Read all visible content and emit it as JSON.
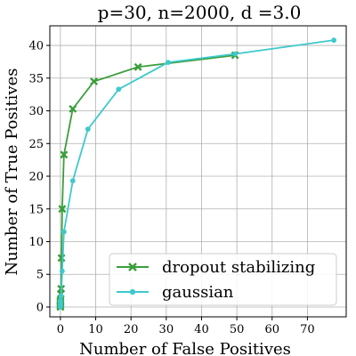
{
  "chart_data": {
    "type": "line",
    "title": "p=30, n=2000, d =3.0",
    "xlabel": "Number of False Positives",
    "ylabel": "Number of True Positives",
    "xlim": [
      -3,
      81
    ],
    "ylim": [
      -1.5,
      43
    ],
    "xticks": [
      0,
      10,
      20,
      30,
      40,
      50,
      60,
      70
    ],
    "yticks": [
      0,
      5,
      10,
      15,
      20,
      25,
      30,
      35,
      40
    ],
    "grid": true,
    "legend": "lower-right",
    "series": [
      {
        "name": "dropout stabilizing",
        "color": "#3a9e3a",
        "marker": "x",
        "x": [
          0,
          0,
          0,
          0,
          0,
          0,
          0.1,
          0.2,
          0.3,
          0.5,
          1,
          3.5,
          9.5,
          22,
          49.5
        ],
        "y": [
          0,
          0.2,
          0.4,
          0.6,
          0.8,
          1,
          2,
          2.8,
          7.5,
          15,
          23.3,
          30.3,
          34.5,
          36.7,
          38.5
        ]
      },
      {
        "name": "gaussian",
        "color": "#3ec9cc",
        "marker": "o",
        "x": [
          0,
          0,
          0,
          0,
          0,
          0,
          0.2,
          0.5,
          1,
          3.5,
          7.8,
          16.5,
          30.5,
          49.5,
          77.5
        ],
        "y": [
          0,
          0.2,
          0.4,
          0.6,
          0.8,
          1,
          1.7,
          5.5,
          11.5,
          19.3,
          27.2,
          33.3,
          37.4,
          38.7,
          40.8
        ]
      }
    ]
  }
}
